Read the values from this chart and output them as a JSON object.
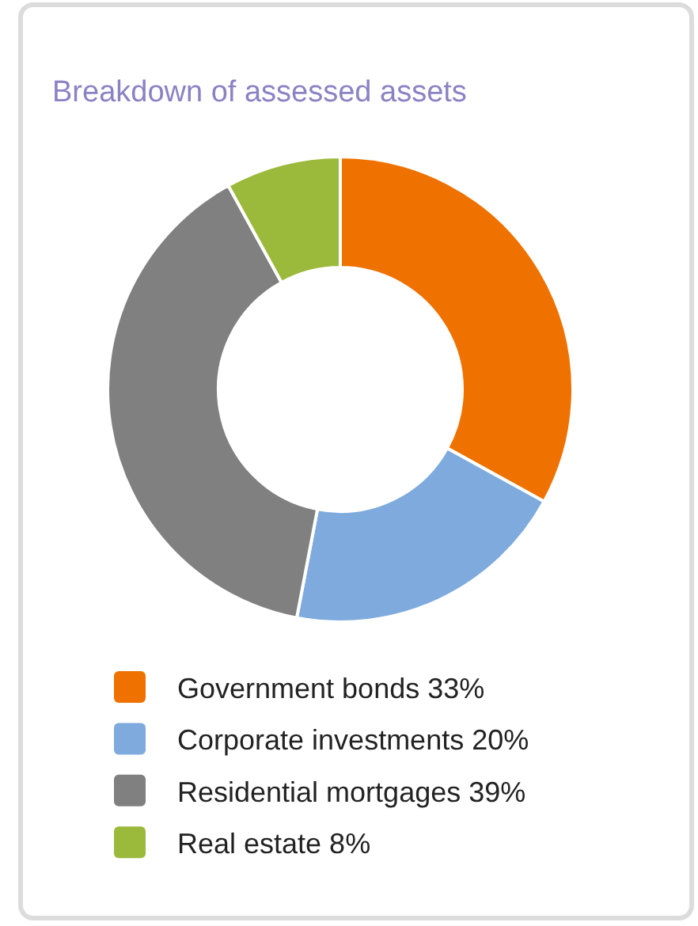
{
  "chart_data": {
    "type": "donut",
    "title": "Breakdown of assessed assets",
    "categories": [
      "Government bonds",
      "Corporate investments",
      "Residential mortgages",
      "Real estate"
    ],
    "values": [
      33,
      20,
      39,
      8
    ],
    "value_labels": [
      "33%",
      "20%",
      "39%",
      "8%"
    ],
    "colors": [
      "#ef7100",
      "#7eaadd",
      "#808080",
      "#9bba3c"
    ],
    "legend": "bottom"
  }
}
